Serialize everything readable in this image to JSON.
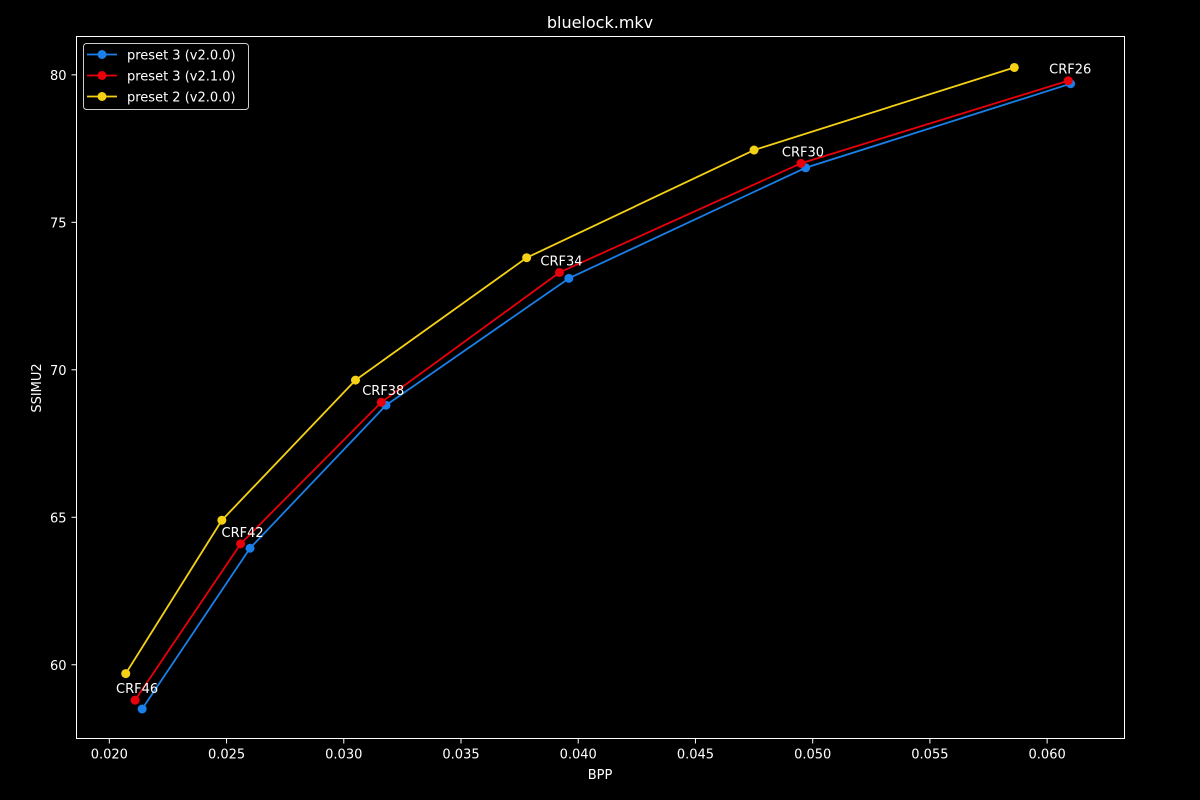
{
  "chart_data": {
    "type": "line",
    "title": "bluelock.mkv",
    "xlabel": "BPP",
    "ylabel": "SSIMU2",
    "xlim": [
      0.0186,
      0.0633
    ],
    "ylim": [
      57.5,
      81.3
    ],
    "xticks": [
      0.02,
      0.025,
      0.03,
      0.035,
      0.04,
      0.045,
      0.05,
      0.055,
      0.06
    ],
    "xtick_labels": [
      "0.020",
      "0.025",
      "0.030",
      "0.035",
      "0.040",
      "0.045",
      "0.050",
      "0.055",
      "0.060"
    ],
    "yticks": [
      60,
      65,
      70,
      75,
      80
    ],
    "ytick_labels": [
      "60",
      "65",
      "70",
      "75",
      "80"
    ],
    "grid": false,
    "legend_position": "top-left",
    "background": "#000000",
    "series": [
      {
        "name": "preset 3 (v2.0.0)",
        "color": "#1a7fe8",
        "x": [
          0.0214,
          0.026,
          0.0318,
          0.0396,
          0.0497,
          0.061
        ],
        "y": [
          58.5,
          63.95,
          68.8,
          73.1,
          76.85,
          79.7
        ]
      },
      {
        "name": "preset 3 (v2.1.0)",
        "color": "#e8000b",
        "x": [
          0.0211,
          0.0256,
          0.0316,
          0.0392,
          0.0495,
          0.0609
        ],
        "y": [
          58.8,
          64.1,
          68.9,
          73.3,
          77.0,
          79.8
        ]
      },
      {
        "name": "preset 2 (v2.0.0)",
        "color": "#f5d116",
        "x": [
          0.0207,
          0.0248,
          0.0305,
          0.0378,
          0.0475,
          0.0586
        ],
        "y": [
          59.7,
          64.9,
          69.65,
          73.8,
          77.45,
          80.25
        ]
      }
    ],
    "annotations": [
      {
        "text": "CRF46",
        "x": 0.0211,
        "y": 58.8
      },
      {
        "text": "CRF42",
        "x": 0.0256,
        "y": 64.1
      },
      {
        "text": "CRF38",
        "x": 0.0316,
        "y": 68.9
      },
      {
        "text": "CRF34",
        "x": 0.0392,
        "y": 73.3
      },
      {
        "text": "CRF30",
        "x": 0.0495,
        "y": 77.0
      },
      {
        "text": "CRF26",
        "x": 0.0609,
        "y": 79.8
      }
    ]
  }
}
